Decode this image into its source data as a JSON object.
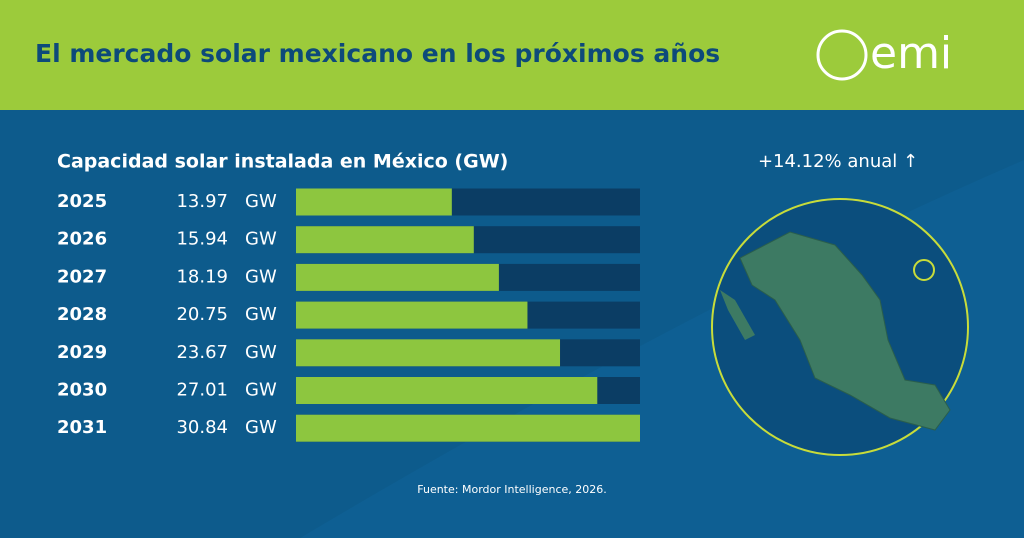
{
  "header": {
    "title": "El mercado solar mexicano en los próximos años",
    "logo": "emi"
  },
  "chart_data": {
    "type": "bar",
    "orientation": "horizontal",
    "title": "Capacidad solar instalada en México (GW)",
    "categories": [
      "2025",
      "2026",
      "2027",
      "2028",
      "2029",
      "2030",
      "2031"
    ],
    "values": [
      13.97,
      15.94,
      18.19,
      20.75,
      23.67,
      27.01,
      30.84
    ],
    "unit": "GW",
    "xlim": [
      0,
      30.84
    ],
    "color": "#8dc63f",
    "track_color": "#0b3d64",
    "annotation": "+14.12% anual ↑",
    "source": "Fuente: Mordor Intelligence, 2026."
  }
}
